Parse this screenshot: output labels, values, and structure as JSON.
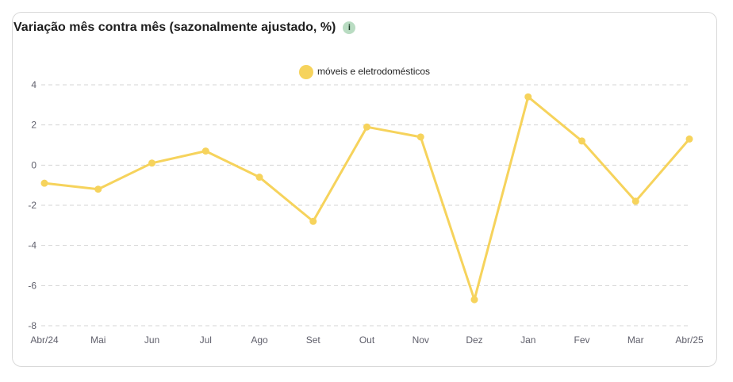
{
  "header": {
    "title": "Variação mês contra mês (sazonalmente ajustado, %)",
    "info_icon": "info-icon",
    "info_glyph": "i"
  },
  "colors": {
    "series": "#f6d35c",
    "grid": "#d4d4d4",
    "axis_text": "#5f5f6b",
    "info_bg": "#b9dcc2"
  },
  "chart_data": {
    "type": "line",
    "title": "Variação mês contra mês (sazonalmente ajustado, %)",
    "xlabel": "",
    "ylabel": "",
    "categories": [
      "Abr/24",
      "Mai",
      "Jun",
      "Jul",
      "Ago",
      "Set",
      "Out",
      "Nov",
      "Dez",
      "Jan",
      "Fev",
      "Mar",
      "Abr/25"
    ],
    "series": [
      {
        "name": "móveis e eletrodomésticos",
        "values": [
          -0.9,
          -1.2,
          0.1,
          0.7,
          -0.6,
          -2.8,
          1.9,
          1.4,
          -6.7,
          3.4,
          1.2,
          -1.8,
          1.3
        ]
      }
    ],
    "ylim": [
      -8,
      4
    ],
    "yticks": [
      4,
      2,
      0,
      -2,
      -4,
      -6,
      -8
    ],
    "grid": "horizontal dashed",
    "legend": "top-center"
  }
}
